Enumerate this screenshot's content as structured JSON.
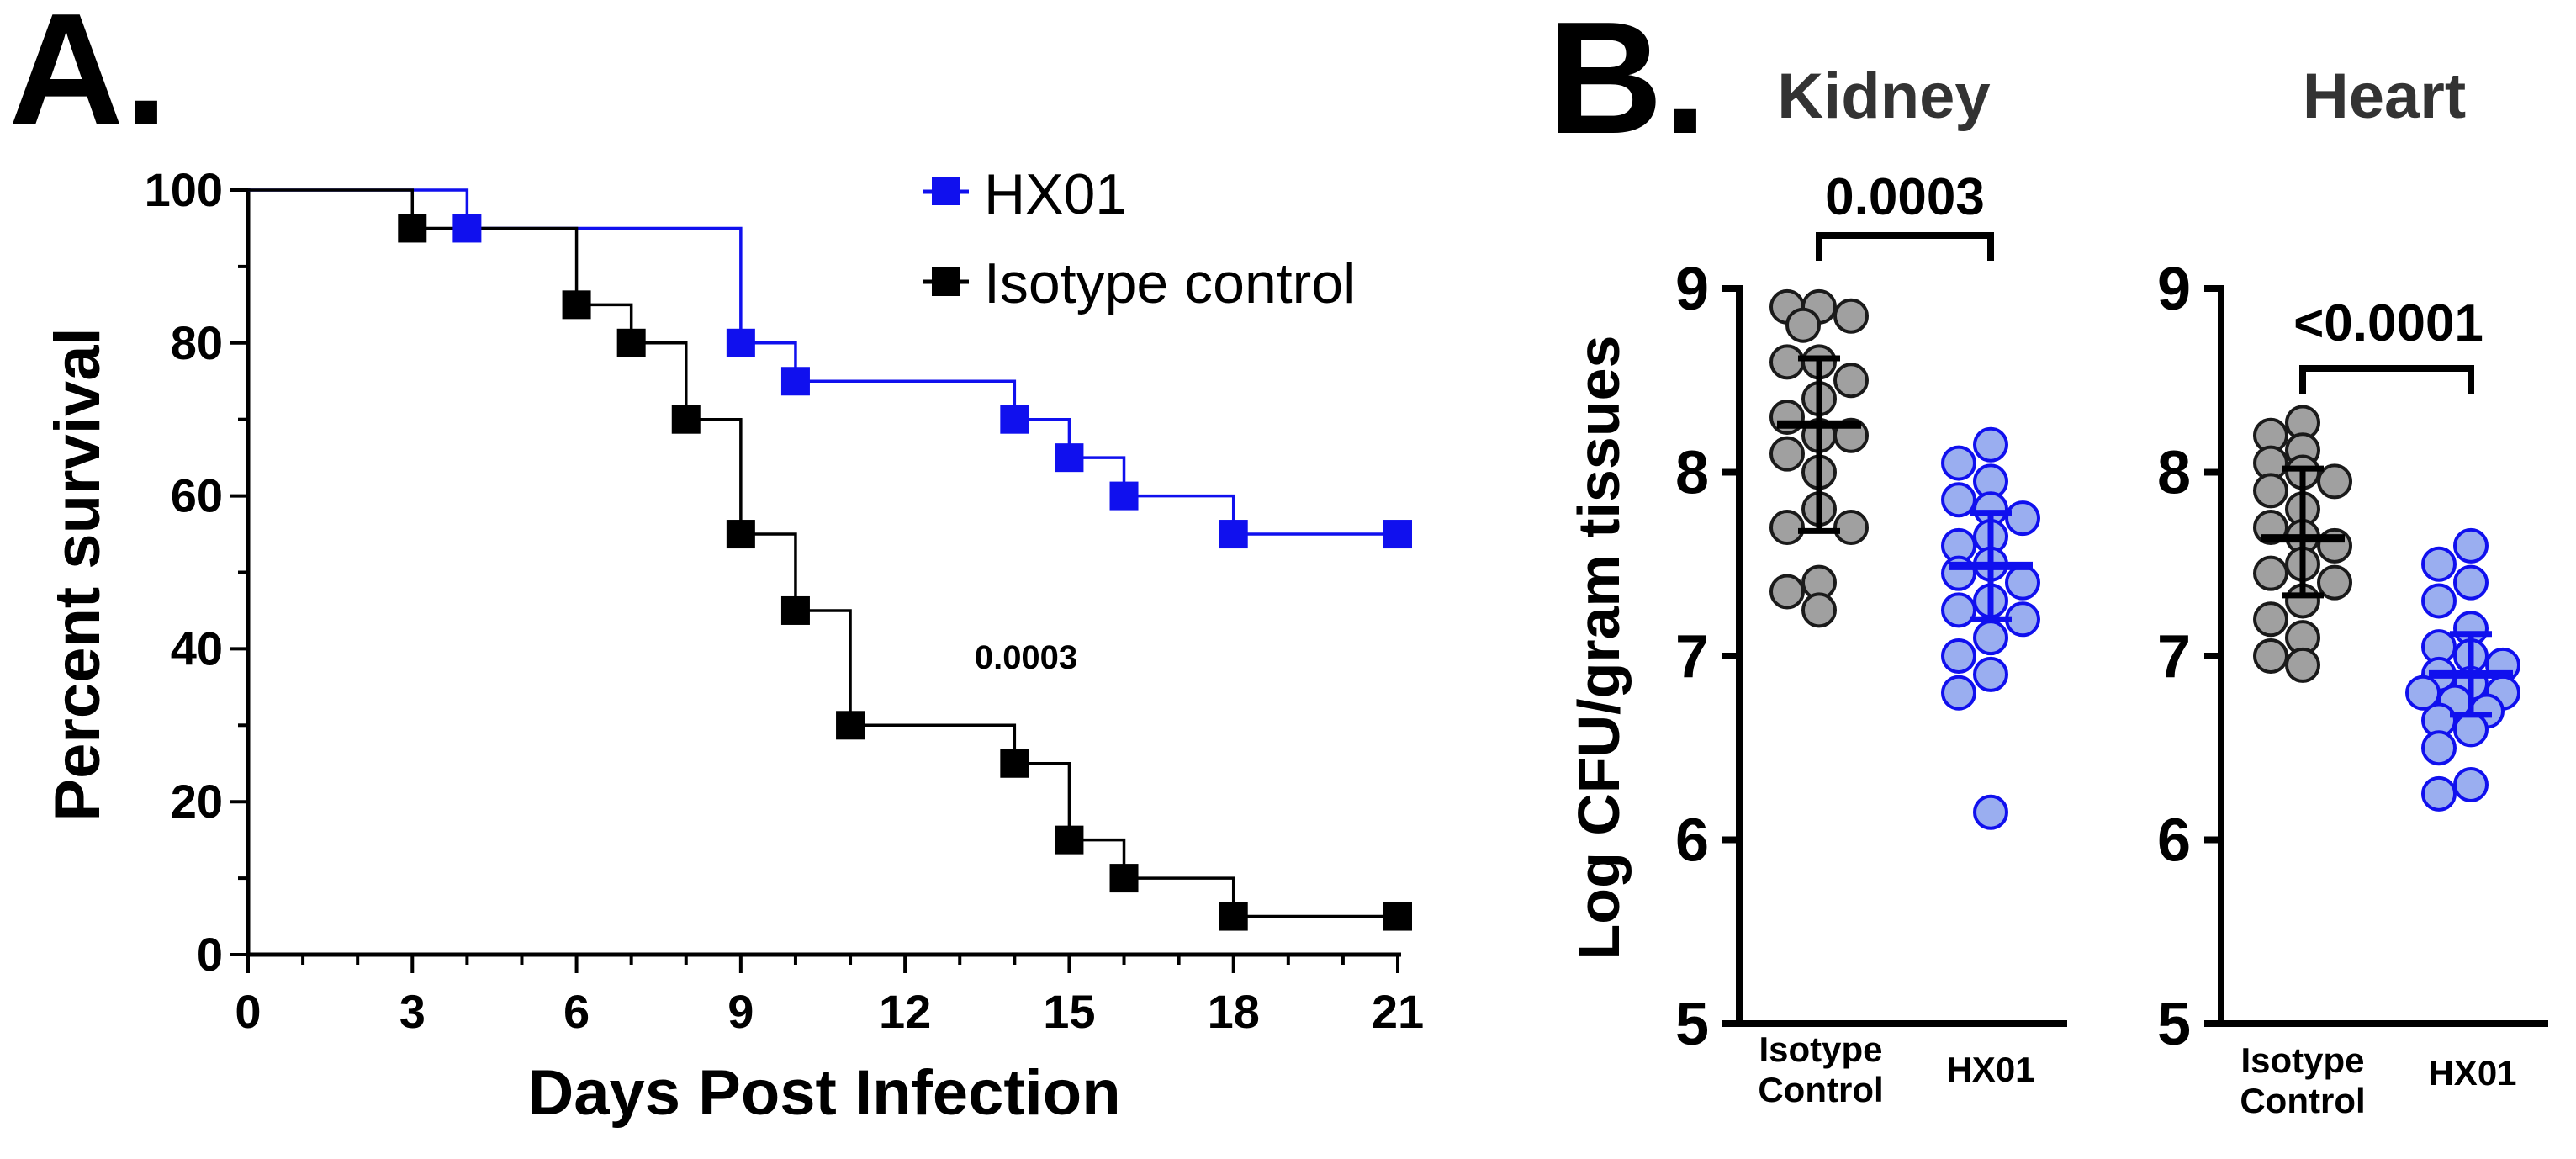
{
  "panels": {
    "a_label": "A.",
    "b_label": "B."
  },
  "colors": {
    "hx01": "#1010ee",
    "control": "#000000",
    "grey_fill": "#a0a0a0",
    "blue_fill": "#9aaef0"
  },
  "chart_data": [
    {
      "id": "survival",
      "type": "line",
      "subtype": "kaplan-meier",
      "title": "",
      "xlabel": "Days Post Infection",
      "ylabel": "Percent survival",
      "xlim": [
        0,
        21
      ],
      "ylim": [
        0,
        100
      ],
      "xticks": [
        "0",
        "3",
        "6",
        "9",
        "12",
        "15",
        "18",
        "21"
      ],
      "yticks": [
        "0",
        "20",
        "40",
        "60",
        "80",
        "100"
      ],
      "annotation": "0.0003",
      "legend_position": "top-right",
      "series": [
        {
          "name": "HX01",
          "color": "#1010ee",
          "steps": [
            [
              0,
              100
            ],
            [
              3,
              100
            ],
            [
              4,
              95
            ],
            [
              9,
              95
            ],
            [
              9,
              80
            ],
            [
              10,
              75
            ],
            [
              14,
              75
            ],
            [
              14,
              70
            ],
            [
              15,
              65
            ],
            [
              16,
              60
            ],
            [
              18,
              55
            ],
            [
              21,
              55
            ]
          ],
          "markers": [
            [
              4,
              95
            ],
            [
              9,
              80
            ],
            [
              10,
              75
            ],
            [
              14,
              70
            ],
            [
              15,
              65
            ],
            [
              16,
              60
            ],
            [
              18,
              55
            ],
            [
              21,
              55
            ]
          ]
        },
        {
          "name": "Isotype control",
          "color": "#000000",
          "steps": [
            [
              0,
              100
            ],
            [
              3,
              95
            ],
            [
              6,
              95
            ],
            [
              6,
              85
            ],
            [
              7,
              80
            ],
            [
              8,
              70
            ],
            [
              9,
              55
            ],
            [
              10,
              45
            ],
            [
              11,
              30
            ],
            [
              14,
              30
            ],
            [
              14,
              25
            ],
            [
              15,
              15
            ],
            [
              16,
              10
            ],
            [
              18,
              5
            ],
            [
              21,
              5
            ]
          ],
          "markers": [
            [
              3,
              95
            ],
            [
              6,
              85
            ],
            [
              7,
              80
            ],
            [
              8,
              70
            ],
            [
              9,
              55
            ],
            [
              10,
              45
            ],
            [
              11,
              30
            ],
            [
              14,
              25
            ],
            [
              15,
              15
            ],
            [
              16,
              10
            ],
            [
              18,
              5
            ],
            [
              21,
              5
            ]
          ]
        }
      ]
    },
    {
      "id": "kidney",
      "type": "scatter",
      "subtype": "dot-plot",
      "title": "Kidney",
      "ylabel": "Log CFU/gram tissues",
      "ylim": [
        5,
        9
      ],
      "yticks": [
        "5",
        "6",
        "7",
        "8",
        "9"
      ],
      "pvalue": "0.0003",
      "groups": [
        {
          "name": "Isotype Control",
          "name_lines": [
            "Isotype",
            "Control"
          ],
          "mean": 8.26,
          "sd_low": 7.68,
          "sd_high": 8.62,
          "values": [
            8.9,
            8.9,
            8.85,
            8.8,
            8.6,
            8.6,
            8.5,
            8.4,
            8.3,
            8.2,
            8.2,
            8.1,
            8.0,
            7.8,
            7.7,
            7.7,
            7.4,
            7.35,
            7.25
          ]
        },
        {
          "name": "HX01",
          "name_lines": [
            "HX01"
          ],
          "mean": 7.49,
          "sd_low": 7.2,
          "sd_high": 7.78,
          "values": [
            8.15,
            8.05,
            7.95,
            7.85,
            7.8,
            7.75,
            7.65,
            7.6,
            7.5,
            7.45,
            7.4,
            7.3,
            7.25,
            7.2,
            7.1,
            7.0,
            6.9,
            6.8,
            6.15
          ]
        }
      ]
    },
    {
      "id": "heart",
      "type": "scatter",
      "subtype": "dot-plot",
      "title": "Heart",
      "ylabel": "",
      "ylim": [
        5,
        9
      ],
      "yticks": [
        "5",
        "6",
        "7",
        "8",
        "9"
      ],
      "pvalue": "<0.0001",
      "groups": [
        {
          "name": "Isotype Control",
          "name_lines": [
            "Isotype",
            "Control"
          ],
          "mean": 7.64,
          "sd_low": 7.33,
          "sd_high": 8.02,
          "values": [
            8.27,
            8.2,
            8.12,
            8.05,
            8.0,
            7.95,
            7.9,
            7.8,
            7.7,
            7.65,
            7.6,
            7.5,
            7.45,
            7.4,
            7.3,
            7.2,
            7.1,
            7.0,
            6.95
          ]
        },
        {
          "name": "HX01",
          "name_lines": [
            "HX01"
          ],
          "mean": 6.9,
          "sd_low": 6.68,
          "sd_high": 7.12,
          "values": [
            7.6,
            7.5,
            7.4,
            7.3,
            7.15,
            7.05,
            7.0,
            6.95,
            6.9,
            6.85,
            6.8,
            6.8,
            6.75,
            6.7,
            6.65,
            6.6,
            6.5,
            6.3,
            6.25
          ]
        }
      ]
    }
  ]
}
